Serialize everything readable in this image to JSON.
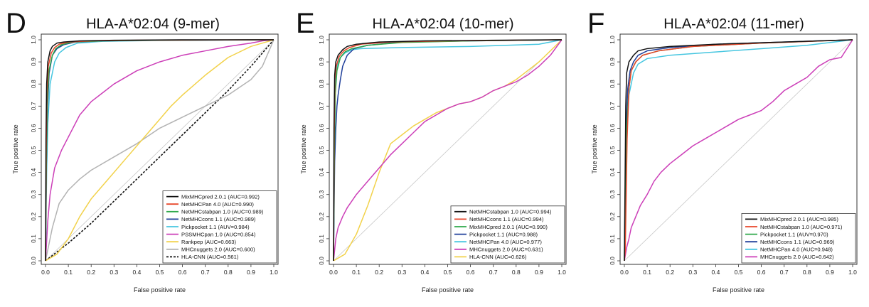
{
  "chart_data": [
    {
      "type": "line",
      "panel": "D",
      "title": "HLA-A*02:04 (9-mer)",
      "xlabel": "False positive rate",
      "ylabel": "True positive rate",
      "xlim": [
        0,
        1
      ],
      "ylim": [
        0,
        1
      ],
      "xticks": [
        "0.0",
        "0.1",
        "0.2",
        "0.3",
        "0.4",
        "0.5",
        "0.6",
        "0.7",
        "0.8",
        "0.9",
        "1.0"
      ],
      "yticks": [
        "0.0",
        "0.1",
        "0.2",
        "0.3",
        "0.4",
        "0.5",
        "0.6",
        "0.7",
        "0.8",
        "0.9",
        "1.0"
      ],
      "legend_position": "bottom-right",
      "series": [
        {
          "name": "MixMHCpred 2.0.1 (AUC=0.992)",
          "color": "#111111",
          "dash": false,
          "x": [
            0,
            0.002,
            0.005,
            0.01,
            0.02,
            0.03,
            0.05,
            0.08,
            0.15,
            0.3,
            0.6,
            1.0
          ],
          "y": [
            0,
            0.55,
            0.8,
            0.9,
            0.95,
            0.97,
            0.985,
            0.99,
            0.995,
            0.998,
            1,
            1
          ]
        },
        {
          "name": "NetMHCPan 4.0 (AUC=0.990)",
          "color": "#e8462a",
          "dash": false,
          "x": [
            0,
            0.003,
            0.006,
            0.012,
            0.025,
            0.04,
            0.06,
            0.1,
            0.2,
            0.4,
            1.0
          ],
          "y": [
            0,
            0.5,
            0.76,
            0.88,
            0.94,
            0.965,
            0.98,
            0.99,
            0.995,
            0.998,
            1
          ]
        },
        {
          "name": "NetMHCstabpan 1.0 (AUC=0.989)",
          "color": "#2ea84a",
          "dash": false,
          "x": [
            0,
            0.004,
            0.008,
            0.015,
            0.03,
            0.045,
            0.07,
            0.12,
            0.25,
            0.5,
            1.0
          ],
          "y": [
            0,
            0.45,
            0.72,
            0.86,
            0.93,
            0.96,
            0.978,
            0.99,
            0.995,
            0.998,
            1
          ]
        },
        {
          "name": "NetMHCcons 1.1 (AUC=0.989)",
          "color": "#1f3f9a",
          "dash": false,
          "x": [
            0,
            0.004,
            0.009,
            0.016,
            0.03,
            0.05,
            0.08,
            0.13,
            0.25,
            0.5,
            1.0
          ],
          "y": [
            0,
            0.44,
            0.7,
            0.85,
            0.93,
            0.96,
            0.978,
            0.99,
            0.995,
            0.998,
            1
          ]
        },
        {
          "name": "Pickpocket 1.1 (AUV=0.984)",
          "color": "#46c6e0",
          "dash": false,
          "x": [
            0,
            0.005,
            0.01,
            0.02,
            0.04,
            0.06,
            0.09,
            0.14,
            0.25,
            0.5,
            1.0
          ],
          "y": [
            0,
            0.4,
            0.62,
            0.8,
            0.9,
            0.94,
            0.965,
            0.985,
            0.993,
            0.997,
            1
          ]
        },
        {
          "name": "PSSMHCpan 1.0 (AUC=0.854)",
          "color": "#cc3fb8",
          "dash": false,
          "x": [
            0,
            0.01,
            0.02,
            0.04,
            0.07,
            0.1,
            0.15,
            0.2,
            0.25,
            0.3,
            0.4,
            0.5,
            0.6,
            0.7,
            0.8,
            0.9,
            0.95,
            1.0
          ],
          "y": [
            0,
            0.18,
            0.3,
            0.42,
            0.5,
            0.56,
            0.66,
            0.72,
            0.76,
            0.8,
            0.86,
            0.9,
            0.93,
            0.95,
            0.97,
            0.985,
            0.995,
            1
          ]
        },
        {
          "name": "Rankpep (AUC=0.663)",
          "color": "#f2d24b",
          "dash": false,
          "x": [
            0,
            0.05,
            0.1,
            0.15,
            0.2,
            0.25,
            0.3,
            0.35,
            0.4,
            0.45,
            0.5,
            0.55,
            0.6,
            0.7,
            0.8,
            0.9,
            1.0
          ],
          "y": [
            0,
            0.03,
            0.1,
            0.2,
            0.28,
            0.34,
            0.4,
            0.46,
            0.52,
            0.58,
            0.64,
            0.7,
            0.75,
            0.84,
            0.92,
            0.97,
            1
          ]
        },
        {
          "name": "MHCnuggets 2.0 (AUC=0.600)",
          "color": "#b3b3b3",
          "dash": false,
          "x": [
            0,
            0.03,
            0.06,
            0.1,
            0.15,
            0.2,
            0.3,
            0.4,
            0.5,
            0.6,
            0.7,
            0.8,
            0.9,
            0.95,
            1.0
          ],
          "y": [
            0,
            0.15,
            0.26,
            0.32,
            0.37,
            0.41,
            0.47,
            0.53,
            0.6,
            0.65,
            0.7,
            0.75,
            0.82,
            0.88,
            1
          ]
        },
        {
          "name": "HLA-CNN (AUC=0.561)",
          "color": "#111111",
          "dash": true,
          "x": [
            0,
            0.1,
            0.2,
            0.3,
            0.4,
            0.5,
            0.6,
            0.7,
            0.8,
            0.9,
            1.0
          ],
          "y": [
            0,
            0.08,
            0.17,
            0.27,
            0.37,
            0.47,
            0.57,
            0.67,
            0.77,
            0.88,
            1
          ]
        }
      ]
    },
    {
      "type": "line",
      "panel": "E",
      "title": "HLA-A*02:04 (10-mer)",
      "xlabel": "False positive rate",
      "ylabel": "True positive rate",
      "xlim": [
        0,
        1
      ],
      "ylim": [
        0,
        1
      ],
      "xticks": [
        "0.0",
        "0.1",
        "0.2",
        "0.3",
        "0.4",
        "0.5",
        "0.6",
        "0.7",
        "0.8",
        "0.9",
        "1.0"
      ],
      "yticks": [
        "0.0",
        "0.1",
        "0.2",
        "0.3",
        "0.4",
        "0.5",
        "0.6",
        "0.7",
        "0.8",
        "0.9",
        "1.0"
      ],
      "legend_position": "bottom-right",
      "series": [
        {
          "name": "NetMHCstabpan 1.0 (AUC=0.994)",
          "color": "#111111",
          "dash": false,
          "x": [
            0,
            0.002,
            0.005,
            0.01,
            0.02,
            0.04,
            0.06,
            0.1,
            0.2,
            0.4,
            0.7,
            1.0
          ],
          "y": [
            0,
            0.6,
            0.84,
            0.9,
            0.93,
            0.955,
            0.97,
            0.98,
            0.99,
            0.995,
            0.998,
            1
          ]
        },
        {
          "name": "NetMHCcons 1.1 (AUC=0.994)",
          "color": "#e8462a",
          "dash": false,
          "x": [
            0,
            0.003,
            0.006,
            0.012,
            0.025,
            0.045,
            0.07,
            0.12,
            0.25,
            0.5,
            1.0
          ],
          "y": [
            0,
            0.58,
            0.82,
            0.88,
            0.925,
            0.95,
            0.965,
            0.98,
            0.99,
            0.995,
            1
          ]
        },
        {
          "name": "MixMHCpred 2.0.1 (AUC=0.990)",
          "color": "#2ea84a",
          "dash": false,
          "x": [
            0,
            0.004,
            0.008,
            0.015,
            0.03,
            0.05,
            0.08,
            0.15,
            0.3,
            0.6,
            1.0
          ],
          "y": [
            0,
            0.5,
            0.76,
            0.86,
            0.92,
            0.945,
            0.96,
            0.975,
            0.988,
            0.995,
            1
          ]
        },
        {
          "name": "Pickpocket 1.1 (AUC=0.988)",
          "color": "#1f3f9a",
          "dash": false,
          "x": [
            0,
            0.005,
            0.01,
            0.015,
            0.02,
            0.03,
            0.04,
            0.06,
            0.09,
            0.15,
            0.3,
            0.6,
            1.0
          ],
          "y": [
            0,
            0.45,
            0.6,
            0.7,
            0.75,
            0.82,
            0.88,
            0.93,
            0.96,
            0.975,
            0.99,
            0.995,
            1
          ]
        },
        {
          "name": "NetMHCPan 4.0 (AUC=0.977)",
          "color": "#46c6e0",
          "dash": false,
          "x": [
            0,
            0.005,
            0.01,
            0.02,
            0.03,
            0.05,
            0.08,
            0.12,
            0.3,
            0.6,
            0.9,
            1.0
          ],
          "y": [
            0,
            0.7,
            0.85,
            0.9,
            0.92,
            0.94,
            0.955,
            0.96,
            0.965,
            0.97,
            0.98,
            1
          ]
        },
        {
          "name": "MHCnuggets 2.0 (AUC=0.631)",
          "color": "#cc3fb8",
          "dash": false,
          "x": [
            0,
            0.01,
            0.02,
            0.04,
            0.06,
            0.08,
            0.1,
            0.15,
            0.2,
            0.25,
            0.3,
            0.35,
            0.4,
            0.45,
            0.5,
            0.55,
            0.6,
            0.65,
            0.7,
            0.75,
            0.8,
            0.85,
            0.9,
            0.95,
            1.0
          ],
          "y": [
            0,
            0.1,
            0.15,
            0.2,
            0.24,
            0.27,
            0.3,
            0.36,
            0.42,
            0.48,
            0.53,
            0.58,
            0.63,
            0.66,
            0.69,
            0.71,
            0.72,
            0.74,
            0.77,
            0.79,
            0.81,
            0.84,
            0.88,
            0.93,
            1
          ]
        },
        {
          "name": "HLA-CNN (AUC=0.626)",
          "color": "#f2d24b",
          "dash": false,
          "x": [
            0,
            0.05,
            0.1,
            0.15,
            0.2,
            0.25,
            0.3,
            0.35,
            0.4,
            0.45,
            0.5,
            0.55,
            0.6,
            0.65,
            0.7,
            0.75,
            0.8,
            0.85,
            0.9,
            0.95,
            1.0
          ],
          "y": [
            0,
            0.03,
            0.12,
            0.25,
            0.4,
            0.53,
            0.57,
            0.61,
            0.64,
            0.67,
            0.69,
            0.71,
            0.72,
            0.74,
            0.77,
            0.79,
            0.82,
            0.86,
            0.9,
            0.95,
            1
          ]
        }
      ]
    },
    {
      "type": "line",
      "panel": "F",
      "title": "HLA-A*02:04 (11-mer)",
      "xlabel": "False positive rate",
      "ylabel": "True positive rate",
      "xlim": [
        0,
        1
      ],
      "ylim": [
        0,
        1
      ],
      "xticks": [
        "0.0",
        "0.1",
        "0.2",
        "0.3",
        "0.4",
        "0.5",
        "0.6",
        "0.7",
        "0.8",
        "0.9",
        "1.0"
      ],
      "yticks": [
        "0.0",
        "0.1",
        "0.2",
        "0.3",
        "0.4",
        "0.5",
        "0.6",
        "0.7",
        "0.8",
        "0.9",
        "1.0"
      ],
      "legend_position": "bottom-right",
      "series": [
        {
          "name": "MixMHCpred 2.0.1 (AUC=0.985)",
          "color": "#111111",
          "dash": false,
          "x": [
            0,
            0.003,
            0.006,
            0.01,
            0.02,
            0.04,
            0.06,
            0.1,
            0.2,
            0.4,
            0.7,
            1.0
          ],
          "y": [
            0,
            0.35,
            0.7,
            0.85,
            0.9,
            0.93,
            0.95,
            0.96,
            0.97,
            0.98,
            0.99,
            1
          ]
        },
        {
          "name": "NetMHCstabpan 1.0 (AUC=0.971)",
          "color": "#e8462a",
          "dash": false,
          "x": [
            0,
            0.004,
            0.008,
            0.012,
            0.02,
            0.03,
            0.05,
            0.08,
            0.15,
            0.3,
            0.6,
            1.0
          ],
          "y": [
            0,
            0.05,
            0.3,
            0.55,
            0.78,
            0.86,
            0.9,
            0.93,
            0.95,
            0.97,
            0.985,
            1
          ]
        },
        {
          "name": "Pickpocket 1.1 (AUV=0.970)",
          "color": "#2ea84a",
          "dash": false,
          "x": [
            0,
            0.005,
            0.01,
            0.02,
            0.03,
            0.05,
            0.08,
            0.15,
            0.3,
            0.6,
            1.0
          ],
          "y": [
            0,
            0.3,
            0.6,
            0.78,
            0.86,
            0.9,
            0.93,
            0.95,
            0.97,
            0.985,
            1
          ]
        },
        {
          "name": "NetMHCcons 1.1 (AUC=0.969)",
          "color": "#1f3f9a",
          "dash": false,
          "x": [
            0,
            0.004,
            0.008,
            0.015,
            0.025,
            0.04,
            0.06,
            0.1,
            0.2,
            0.4,
            0.7,
            1.0
          ],
          "y": [
            0,
            0.34,
            0.62,
            0.78,
            0.86,
            0.9,
            0.93,
            0.95,
            0.965,
            0.98,
            0.99,
            1
          ]
        },
        {
          "name": "NetMHCPan 4.0 (AUC=0.948)",
          "color": "#46c6e0",
          "dash": false,
          "x": [
            0,
            0.005,
            0.01,
            0.02,
            0.04,
            0.06,
            0.1,
            0.2,
            0.4,
            0.6,
            0.8,
            1.0
          ],
          "y": [
            0,
            0.3,
            0.55,
            0.75,
            0.85,
            0.89,
            0.915,
            0.93,
            0.945,
            0.96,
            0.975,
            1
          ]
        },
        {
          "name": "MHCnuggets 2.0 (AUC=0.642)",
          "color": "#cc3fb8",
          "dash": false,
          "x": [
            0,
            0.01,
            0.02,
            0.03,
            0.05,
            0.07,
            0.1,
            0.13,
            0.16,
            0.2,
            0.25,
            0.3,
            0.35,
            0.4,
            0.45,
            0.5,
            0.55,
            0.6,
            0.65,
            0.7,
            0.75,
            0.8,
            0.85,
            0.9,
            0.95,
            1.0
          ],
          "y": [
            0,
            0.06,
            0.1,
            0.15,
            0.2,
            0.25,
            0.3,
            0.36,
            0.4,
            0.44,
            0.48,
            0.52,
            0.55,
            0.58,
            0.61,
            0.64,
            0.66,
            0.68,
            0.72,
            0.77,
            0.8,
            0.83,
            0.88,
            0.91,
            0.92,
            1
          ]
        }
      ]
    }
  ]
}
